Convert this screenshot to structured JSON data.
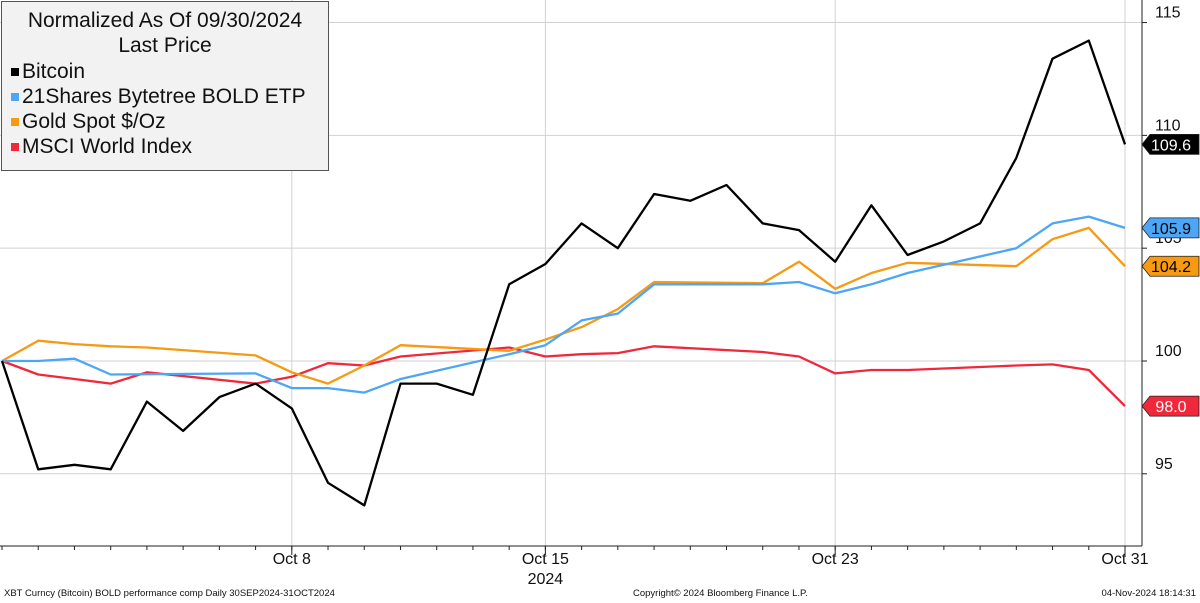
{
  "chart_data": {
    "type": "line",
    "title": "Normalized As Of 09/30/2024",
    "subtitle": "Last Price",
    "dates": [
      "2024-09-30",
      "2024-10-01",
      "2024-10-02",
      "2024-10-03",
      "2024-10-04",
      "2024-10-05",
      "2024-10-06",
      "2024-10-07",
      "2024-10-08",
      "2024-10-09",
      "2024-10-10",
      "2024-10-11",
      "2024-10-12",
      "2024-10-13",
      "2024-10-14",
      "2024-10-15",
      "2024-10-16",
      "2024-10-17",
      "2024-10-18",
      "2024-10-19",
      "2024-10-20",
      "2024-10-21",
      "2024-10-22",
      "2024-10-23",
      "2024-10-24",
      "2024-10-25",
      "2024-10-26",
      "2024-10-27",
      "2024-10-28",
      "2024-10-29",
      "2024-10-30",
      "2024-10-31"
    ],
    "series": [
      {
        "name": "Bitcoin",
        "color": "#000000",
        "end_label": "109.6",
        "points": [
          [
            "2024-09-30",
            100.0
          ],
          [
            "2024-10-01",
            95.2
          ],
          [
            "2024-10-02",
            95.4
          ],
          [
            "2024-10-03",
            95.2
          ],
          [
            "2024-10-04",
            98.2
          ],
          [
            "2024-10-05",
            96.9
          ],
          [
            "2024-10-06",
            98.4
          ],
          [
            "2024-10-07",
            99.0
          ],
          [
            "2024-10-08",
            97.9
          ],
          [
            "2024-10-09",
            94.6
          ],
          [
            "2024-10-10",
            93.6
          ],
          [
            "2024-10-11",
            99.0
          ],
          [
            "2024-10-12",
            99.0
          ],
          [
            "2024-10-13",
            98.5
          ],
          [
            "2024-10-14",
            103.4
          ],
          [
            "2024-10-15",
            104.3
          ],
          [
            "2024-10-16",
            106.1
          ],
          [
            "2024-10-17",
            105.0
          ],
          [
            "2024-10-18",
            107.4
          ],
          [
            "2024-10-19",
            107.1
          ],
          [
            "2024-10-20",
            107.8
          ],
          [
            "2024-10-21",
            106.1
          ],
          [
            "2024-10-22",
            105.8
          ],
          [
            "2024-10-23",
            104.4
          ],
          [
            "2024-10-24",
            106.9
          ],
          [
            "2024-10-25",
            104.7
          ],
          [
            "2024-10-26",
            105.3
          ],
          [
            "2024-10-27",
            106.1
          ],
          [
            "2024-10-28",
            109.0
          ],
          [
            "2024-10-29",
            113.4
          ],
          [
            "2024-10-30",
            114.2
          ],
          [
            "2024-10-31",
            109.6
          ]
        ]
      },
      {
        "name": "21Shares Bytetree BOLD ETP",
        "color": "#4da6f5",
        "end_label": "105.9",
        "points": [
          [
            "2024-09-30",
            100.0
          ],
          [
            "2024-10-01",
            100.0
          ],
          [
            "2024-10-02",
            100.1
          ],
          [
            "2024-10-03",
            99.4
          ],
          [
            "2024-10-07",
            99.45
          ],
          [
            "2024-10-08",
            98.8
          ],
          [
            "2024-10-09",
            98.8
          ],
          [
            "2024-10-10",
            98.6
          ],
          [
            "2024-10-11",
            99.2
          ],
          [
            "2024-10-14",
            100.3
          ],
          [
            "2024-10-15",
            100.7
          ],
          [
            "2024-10-16",
            101.8
          ],
          [
            "2024-10-17",
            102.1
          ],
          [
            "2024-10-18",
            103.4
          ],
          [
            "2024-10-21",
            103.4
          ],
          [
            "2024-10-22",
            103.5
          ],
          [
            "2024-10-23",
            103.0
          ],
          [
            "2024-10-24",
            103.4
          ],
          [
            "2024-10-25",
            103.9
          ],
          [
            "2024-10-28",
            105.0
          ],
          [
            "2024-10-29",
            106.1
          ],
          [
            "2024-10-30",
            106.4
          ],
          [
            "2024-10-31",
            105.9
          ]
        ]
      },
      {
        "name": "Gold Spot $/Oz",
        "color": "#f59a12",
        "end_label": "104.2",
        "points": [
          [
            "2024-09-30",
            100.0
          ],
          [
            "2024-10-01",
            100.9
          ],
          [
            "2024-10-02",
            100.75
          ],
          [
            "2024-10-03",
            100.65
          ],
          [
            "2024-10-04",
            100.6
          ],
          [
            "2024-10-07",
            100.25
          ],
          [
            "2024-10-08",
            99.5
          ],
          [
            "2024-10-09",
            99.0
          ],
          [
            "2024-10-10",
            99.8
          ],
          [
            "2024-10-11",
            100.7
          ],
          [
            "2024-10-14",
            100.45
          ],
          [
            "2024-10-15",
            100.95
          ],
          [
            "2024-10-16",
            101.5
          ],
          [
            "2024-10-17",
            102.3
          ],
          [
            "2024-10-18",
            103.5
          ],
          [
            "2024-10-21",
            103.45
          ],
          [
            "2024-10-22",
            104.4
          ],
          [
            "2024-10-23",
            103.2
          ],
          [
            "2024-10-24",
            103.9
          ],
          [
            "2024-10-25",
            104.35
          ],
          [
            "2024-10-28",
            104.2
          ],
          [
            "2024-10-29",
            105.4
          ],
          [
            "2024-10-30",
            105.9
          ],
          [
            "2024-10-31",
            104.2
          ]
        ]
      },
      {
        "name": "MSCI World Index",
        "color": "#f0283c",
        "end_label": "98.0",
        "points": [
          [
            "2024-09-30",
            100.0
          ],
          [
            "2024-10-01",
            99.4
          ],
          [
            "2024-10-02",
            99.2
          ],
          [
            "2024-10-03",
            99.0
          ],
          [
            "2024-10-04",
            99.5
          ],
          [
            "2024-10-07",
            99.0
          ],
          [
            "2024-10-08",
            99.3
          ],
          [
            "2024-10-09",
            99.9
          ],
          [
            "2024-10-10",
            99.8
          ],
          [
            "2024-10-11",
            100.2
          ],
          [
            "2024-10-14",
            100.6
          ],
          [
            "2024-10-15",
            100.2
          ],
          [
            "2024-10-16",
            100.3
          ],
          [
            "2024-10-17",
            100.35
          ],
          [
            "2024-10-18",
            100.65
          ],
          [
            "2024-10-21",
            100.4
          ],
          [
            "2024-10-22",
            100.2
          ],
          [
            "2024-10-23",
            99.45
          ],
          [
            "2024-10-24",
            99.6
          ],
          [
            "2024-10-25",
            99.6
          ],
          [
            "2024-10-28",
            99.8
          ],
          [
            "2024-10-29",
            99.85
          ],
          [
            "2024-10-30",
            99.6
          ],
          [
            "2024-10-31",
            98.0
          ]
        ]
      }
    ],
    "y_axis": {
      "position": "right",
      "ticks": [
        "95",
        "100",
        "105",
        "110",
        "115"
      ],
      "tick_values": [
        95,
        100,
        105,
        110,
        115
      ],
      "ylim": [
        91.8,
        116.0
      ]
    },
    "x_axis": {
      "ticks": [
        {
          "date": "2024-10-08",
          "label": "Oct 8"
        },
        {
          "date": "2024-10-15",
          "label": "Oct 15"
        },
        {
          "date": "2024-10-23",
          "label": "Oct 23"
        },
        {
          "date": "2024-10-31",
          "label": "Oct 31"
        }
      ],
      "year_label": "2024",
      "range": [
        "2024-09-30",
        "2024-10-31"
      ]
    },
    "grid": true,
    "legend_position": "top-left"
  },
  "footer": {
    "left": "XBT Curncy (Bitcoin) BOLD performance comp  Daily 30SEP2024-31OCT2024",
    "center": "Copyright© 2024 Bloomberg Finance L.P.",
    "right": "04-Nov-2024 18:14:31"
  }
}
